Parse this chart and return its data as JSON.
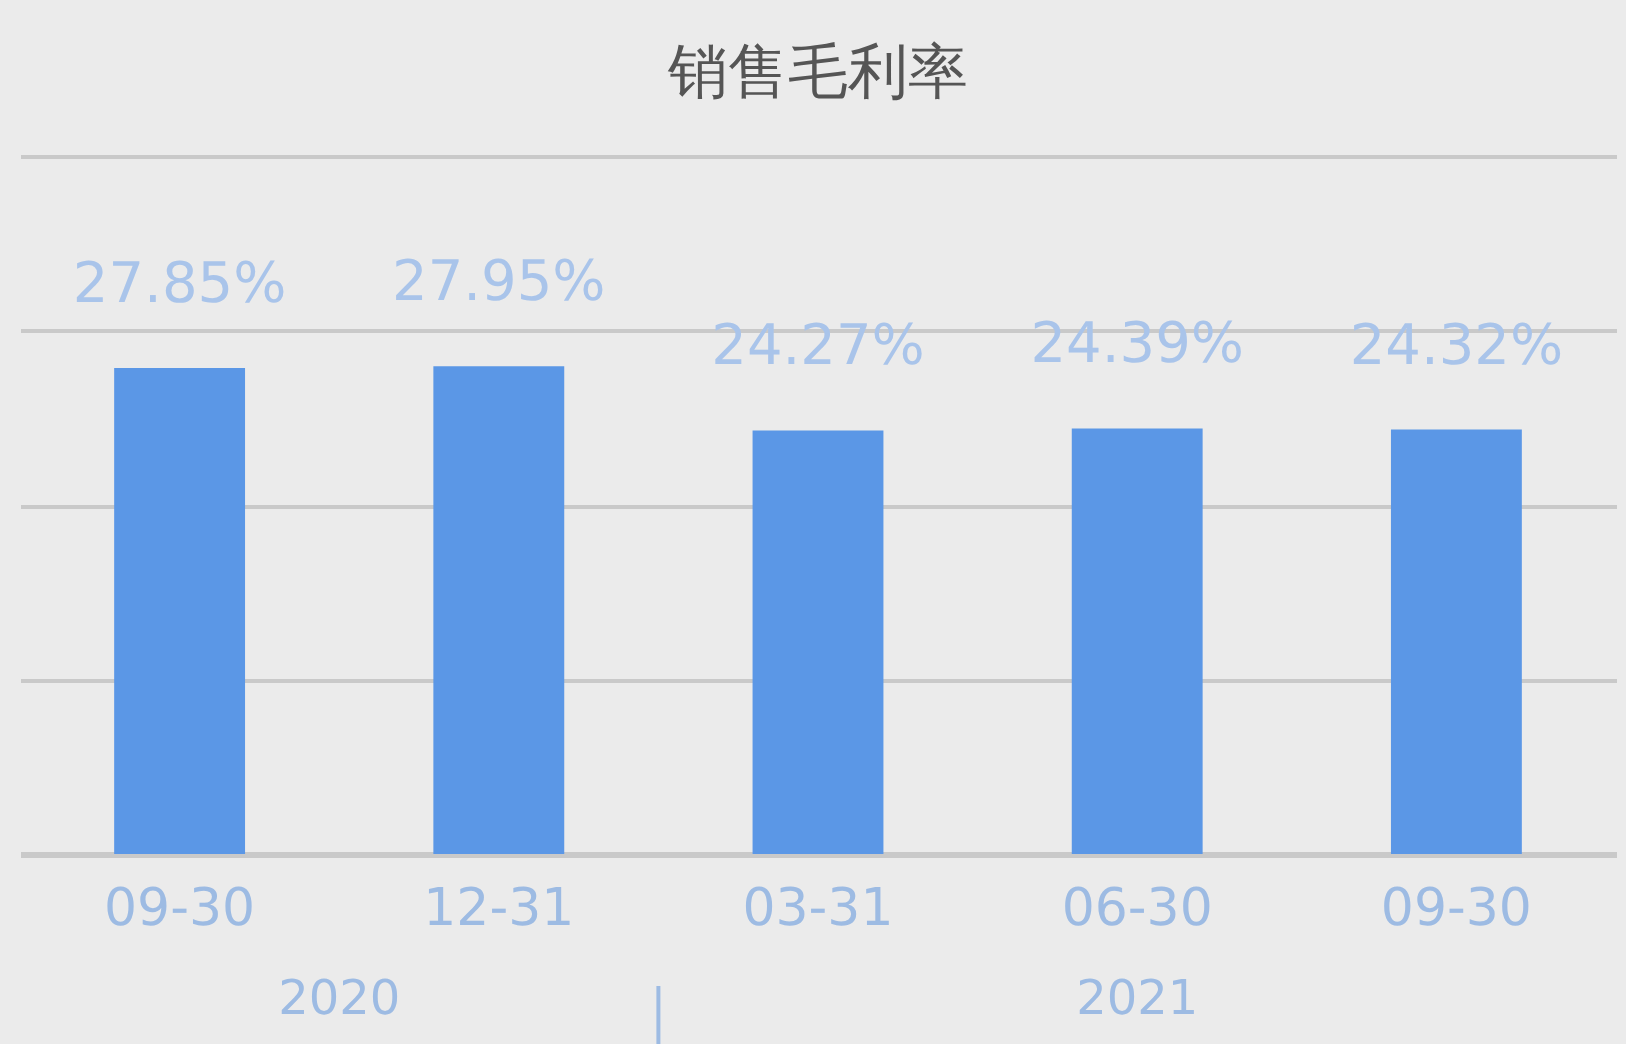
{
  "chart_data": {
    "type": "bar",
    "title": "销售毛利率",
    "categories": [
      "09-30",
      "12-31",
      "03-31",
      "06-30",
      "09-30"
    ],
    "values": [
      27.85,
      27.95,
      24.27,
      24.39,
      24.32
    ],
    "color": "#5b97e6",
    "value_labels": [
      "27.85%",
      "27.95%",
      "24.27%",
      "24.39%",
      "24.32%"
    ],
    "ylim": [
      0,
      40
    ],
    "yticks": [
      {
        "value": 0,
        "label": null
      },
      {
        "value": 10,
        "label": null
      },
      {
        "value": 20,
        "label": null
      },
      {
        "value": 30,
        "label": null
      },
      {
        "value": 40,
        "label": null
      }
    ],
    "grid": "y",
    "tick_labels": "x",
    "annotations": [
      "2020",
      "2021"
    ]
  }
}
